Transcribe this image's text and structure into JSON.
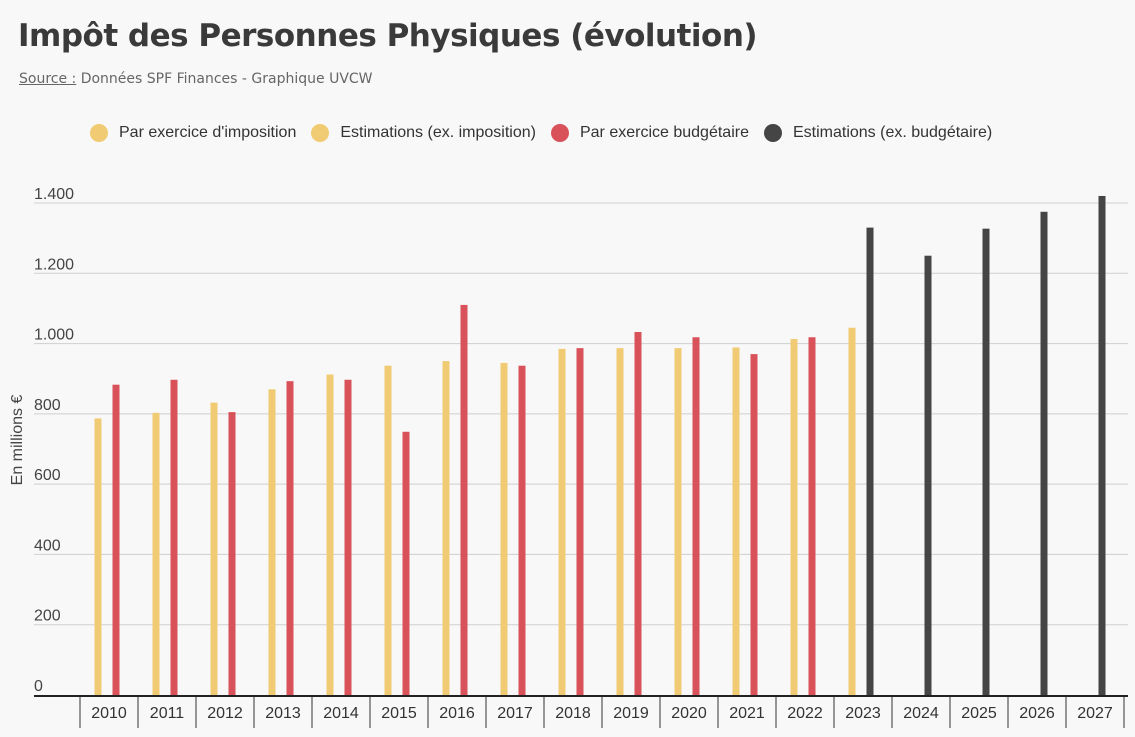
{
  "title": "Impôt des Personnes Physiques (évolution)",
  "source": {
    "label": "Source :",
    "text": " Données SPF Finances - Graphique UVCW"
  },
  "legend": [
    {
      "label": "Par exercice d'imposition",
      "color": "#f0cb73"
    },
    {
      "label": "Estimations (ex. imposition)",
      "color": "#f0cb73"
    },
    {
      "label": "Par exercice budgétaire",
      "color": "#d9525a"
    },
    {
      "label": "Estimations (ex. budgétaire)",
      "color": "#454545"
    }
  ],
  "chart_data": {
    "type": "bar",
    "ylabel": "En millions €",
    "ylim": [
      0,
      1400
    ],
    "yticks": [
      0,
      200,
      400,
      600,
      800,
      1000,
      1200,
      1400
    ],
    "ytick_labels": [
      "0",
      "200",
      "400",
      "600",
      "800",
      "1.000",
      "1.200",
      "1.400"
    ],
    "grid": true,
    "legend_position": "top",
    "categories": [
      "2010",
      "2011",
      "2012",
      "2013",
      "2014",
      "2015",
      "2016",
      "2017",
      "2018",
      "2019",
      "2020",
      "2021",
      "2022",
      "2023",
      "2024",
      "2025",
      "2026",
      "2027"
    ],
    "series": [
      {
        "name": "Par exercice d'imposition",
        "color": "#f0cb73",
        "values": [
          787,
          803,
          832,
          870,
          912,
          937,
          950,
          945,
          985,
          987,
          987,
          989,
          1013,
          null,
          null,
          null,
          null,
          null
        ]
      },
      {
        "name": "Estimations (ex. imposition)",
        "color": "#f0cb73",
        "values": [
          null,
          null,
          null,
          null,
          null,
          null,
          null,
          null,
          null,
          null,
          null,
          null,
          null,
          1045,
          null,
          null,
          null,
          null
        ]
      },
      {
        "name": "Par exercice budgétaire",
        "color": "#d9525a",
        "values": [
          883,
          897,
          805,
          893,
          897,
          749,
          1110,
          937,
          987,
          1033,
          1018,
          970,
          1018,
          null,
          null,
          null,
          null,
          null
        ]
      },
      {
        "name": "Estimations (ex. budgétaire)",
        "color": "#454545",
        "values": [
          null,
          null,
          null,
          null,
          null,
          null,
          null,
          null,
          null,
          null,
          null,
          null,
          null,
          1330,
          1250,
          1327,
          1375,
          1420
        ]
      }
    ]
  }
}
